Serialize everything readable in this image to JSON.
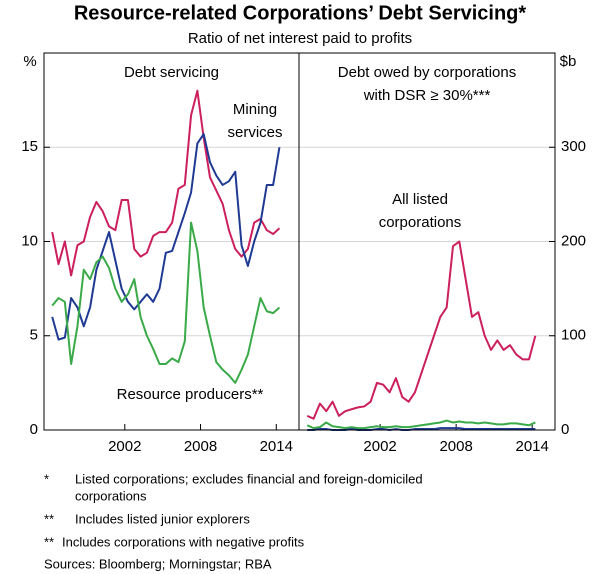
{
  "title": "Resource-related Corporations’ Debt Servicing*",
  "subtitle": "Ratio of net interest paid to profits",
  "chart_data": [
    {
      "type": "line",
      "panel_title": [
        "Debt servicing"
      ],
      "y_unit": "%",
      "x": [
        1996.25,
        1996.75,
        1997.25,
        1997.75,
        1998.25,
        1998.75,
        1999.25,
        1999.75,
        2000.25,
        2000.75,
        2001.25,
        2001.75,
        2002.25,
        2002.75,
        2003.25,
        2003.75,
        2004.25,
        2004.75,
        2005.25,
        2005.75,
        2006.25,
        2006.75,
        2007.25,
        2007.75,
        2008.25,
        2008.75,
        2009.25,
        2009.75,
        2010.25,
        2010.75,
        2011.25,
        2011.75,
        2012.25,
        2012.75,
        2013.25,
        2013.75,
        2014.25
      ],
      "xlim": [
        1995.6,
        2015.8
      ],
      "xticks": [
        2002,
        2008,
        2014
      ],
      "ylim": [
        0,
        20
      ],
      "yticks": [
        0,
        5,
        10,
        15
      ],
      "grid": true,
      "series": [
        {
          "color": "#cc1f5d",
          "values": [
            10.5,
            8.8,
            10.0,
            8.2,
            9.8,
            10.0,
            11.3,
            12.1,
            11.6,
            10.8,
            10.6,
            12.2,
            12.2,
            9.6,
            9.2,
            9.4,
            10.3,
            10.5,
            10.5,
            11.0,
            12.8,
            13.0,
            16.7,
            18.0,
            15.5,
            13.4,
            12.7,
            12.0,
            10.6,
            9.6,
            9.2,
            9.6,
            11.0,
            11.2,
            10.6,
            10.4,
            10.7
          ]
        },
        {
          "name": "Mining services",
          "color": "#1f3a93",
          "values": [
            6.0,
            4.8,
            4.9,
            7.0,
            6.5,
            5.5,
            6.5,
            8.5,
            9.5,
            10.5,
            9.0,
            7.5,
            6.8,
            6.4,
            6.8,
            7.2,
            6.8,
            7.5,
            9.4,
            9.5,
            10.5,
            11.5,
            12.6,
            15.2,
            15.7,
            14.2,
            13.5,
            13.0,
            13.2,
            13.7,
            9.8,
            8.7,
            10.0,
            11.0,
            13.0,
            13.0,
            15.0
          ]
        },
        {
          "name": "Resource producers**",
          "color": "#3aaa48",
          "values": [
            6.6,
            7.0,
            6.8,
            3.5,
            5.5,
            8.5,
            8.0,
            8.9,
            9.2,
            8.6,
            7.5,
            6.8,
            7.2,
            8.0,
            6.0,
            5.0,
            4.3,
            3.5,
            3.5,
            3.8,
            3.6,
            4.7,
            11.0,
            9.5,
            6.5,
            5.0,
            3.6,
            3.2,
            2.9,
            2.5,
            3.2,
            4.0,
            5.5,
            7.0,
            6.3,
            6.2,
            6.5
          ]
        }
      ]
    },
    {
      "type": "line",
      "panel_title": [
        "Debt owed by corporations",
        "with DSR ≥ 30%***"
      ],
      "y_unit": "$b",
      "x": [
        1996.25,
        1996.75,
        1997.25,
        1997.75,
        1998.25,
        1998.75,
        1999.25,
        1999.75,
        2000.25,
        2000.75,
        2001.25,
        2001.75,
        2002.25,
        2002.75,
        2003.25,
        2003.75,
        2004.25,
        2004.75,
        2005.25,
        2005.75,
        2006.25,
        2006.75,
        2007.25,
        2007.75,
        2008.25,
        2008.75,
        2009.25,
        2009.75,
        2010.25,
        2010.75,
        2011.25,
        2011.75,
        2012.25,
        2012.75,
        2013.25,
        2013.75,
        2014.25
      ],
      "xlim": [
        1995.6,
        2015.8
      ],
      "xticks": [
        2002,
        2008,
        2014
      ],
      "ylim": [
        0,
        400
      ],
      "yticks": [
        0,
        100,
        200,
        300
      ],
      "grid": true,
      "series": [
        {
          "name": "All listed corporations",
          "color": "#cc1f5d",
          "values": [
            15,
            12,
            28,
            20,
            30,
            15,
            20,
            22,
            24,
            25,
            30,
            50,
            48,
            40,
            55,
            35,
            30,
            40,
            60,
            80,
            100,
            120,
            130,
            195,
            200,
            160,
            120,
            125,
            100,
            85,
            95,
            85,
            90,
            80,
            75,
            75,
            100
          ]
        },
        {
          "color": "#3aaa48",
          "values": [
            5,
            2,
            3,
            8,
            4,
            3,
            2,
            3,
            2,
            2,
            3,
            4,
            3,
            3,
            4,
            3,
            3,
            4,
            5,
            6,
            7,
            8,
            10,
            8,
            9,
            8,
            8,
            7,
            8,
            7,
            6,
            6,
            7,
            7,
            6,
            5,
            8
          ]
        },
        {
          "color": "#1f3a93",
          "values": [
            0,
            0,
            1,
            1,
            0,
            0,
            0,
            1,
            0,
            0,
            0,
            1,
            1,
            0,
            1,
            0,
            0,
            1,
            1,
            1,
            1,
            2,
            2,
            2,
            2,
            1,
            1,
            1,
            1,
            1,
            1,
            1,
            1,
            1,
            1,
            1,
            1
          ]
        }
      ]
    }
  ],
  "notes": [
    {
      "marker": "*",
      "lines": [
        "Listed corporations; excludes financial and foreign-domiciled",
        "corporations"
      ]
    },
    {
      "marker": "**",
      "lines": [
        "Includes listed junior explorers"
      ]
    },
    {
      "marker": "**",
      "lines": [
        "Includes corporations with negative profits"
      ]
    }
  ],
  "sources": "Sources:  Bloomberg; Morningstar; RBA"
}
